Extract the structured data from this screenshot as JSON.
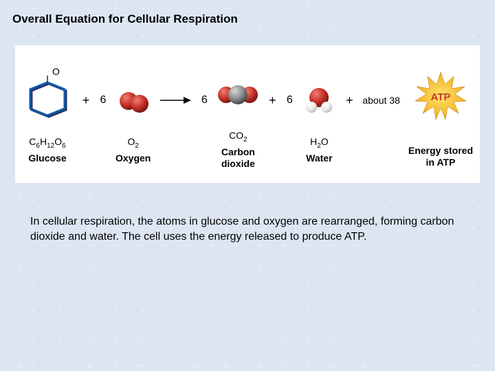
{
  "title": "Overall Equation for Cellular Respiration",
  "caption": "In cellular respiration, the atoms in glucose and oxygen are rearranged, forming carbon dioxide and water. The cell uses the energy released to produce ATP.",
  "diagram": {
    "background_color": "#ffffff",
    "page_background": "#dce6f2",
    "text_color": "#000000",
    "font_family": "Arial",
    "title_fontsize": 17,
    "caption_fontsize": 16,
    "formula_fontsize": 14,
    "name_fontsize": 14,
    "atom_colors": {
      "oxygen": "#c53028",
      "carbon": "#888a8c",
      "hydrogen": "#e6e6e6",
      "glucose_outline": "#0a5aa6",
      "glucose_shadow": "#2f2f6a",
      "atp_star": "#f6b82e",
      "atp_text": "#c03a2a"
    },
    "items": [
      {
        "type": "molecule",
        "id": "glucose",
        "label_o": "O",
        "formula_html": "C<sub>6</sub>H<sub>12</sub>O<sub>6</sub>",
        "name": "Glucose"
      },
      {
        "type": "op",
        "text": "+"
      },
      {
        "type": "coef",
        "text": "6"
      },
      {
        "type": "molecule",
        "id": "o2",
        "formula_html": "O<sub>2</sub>",
        "name": "Oxygen"
      },
      {
        "type": "arrow"
      },
      {
        "type": "coef",
        "text": "6"
      },
      {
        "type": "molecule",
        "id": "co2",
        "formula_html": "CO<sub>2</sub>",
        "name": "Carbon\ndioxide"
      },
      {
        "type": "op",
        "text": "+"
      },
      {
        "type": "coef",
        "text": "6"
      },
      {
        "type": "molecule",
        "id": "h2o",
        "formula_html": "H<sub>2</sub>O",
        "name": "Water"
      },
      {
        "type": "op",
        "text": "+"
      },
      {
        "type": "about",
        "text": "about 38"
      },
      {
        "type": "molecule",
        "id": "atp",
        "atp_label": "ATP",
        "name": "Energy stored\nin ATP"
      }
    ]
  }
}
